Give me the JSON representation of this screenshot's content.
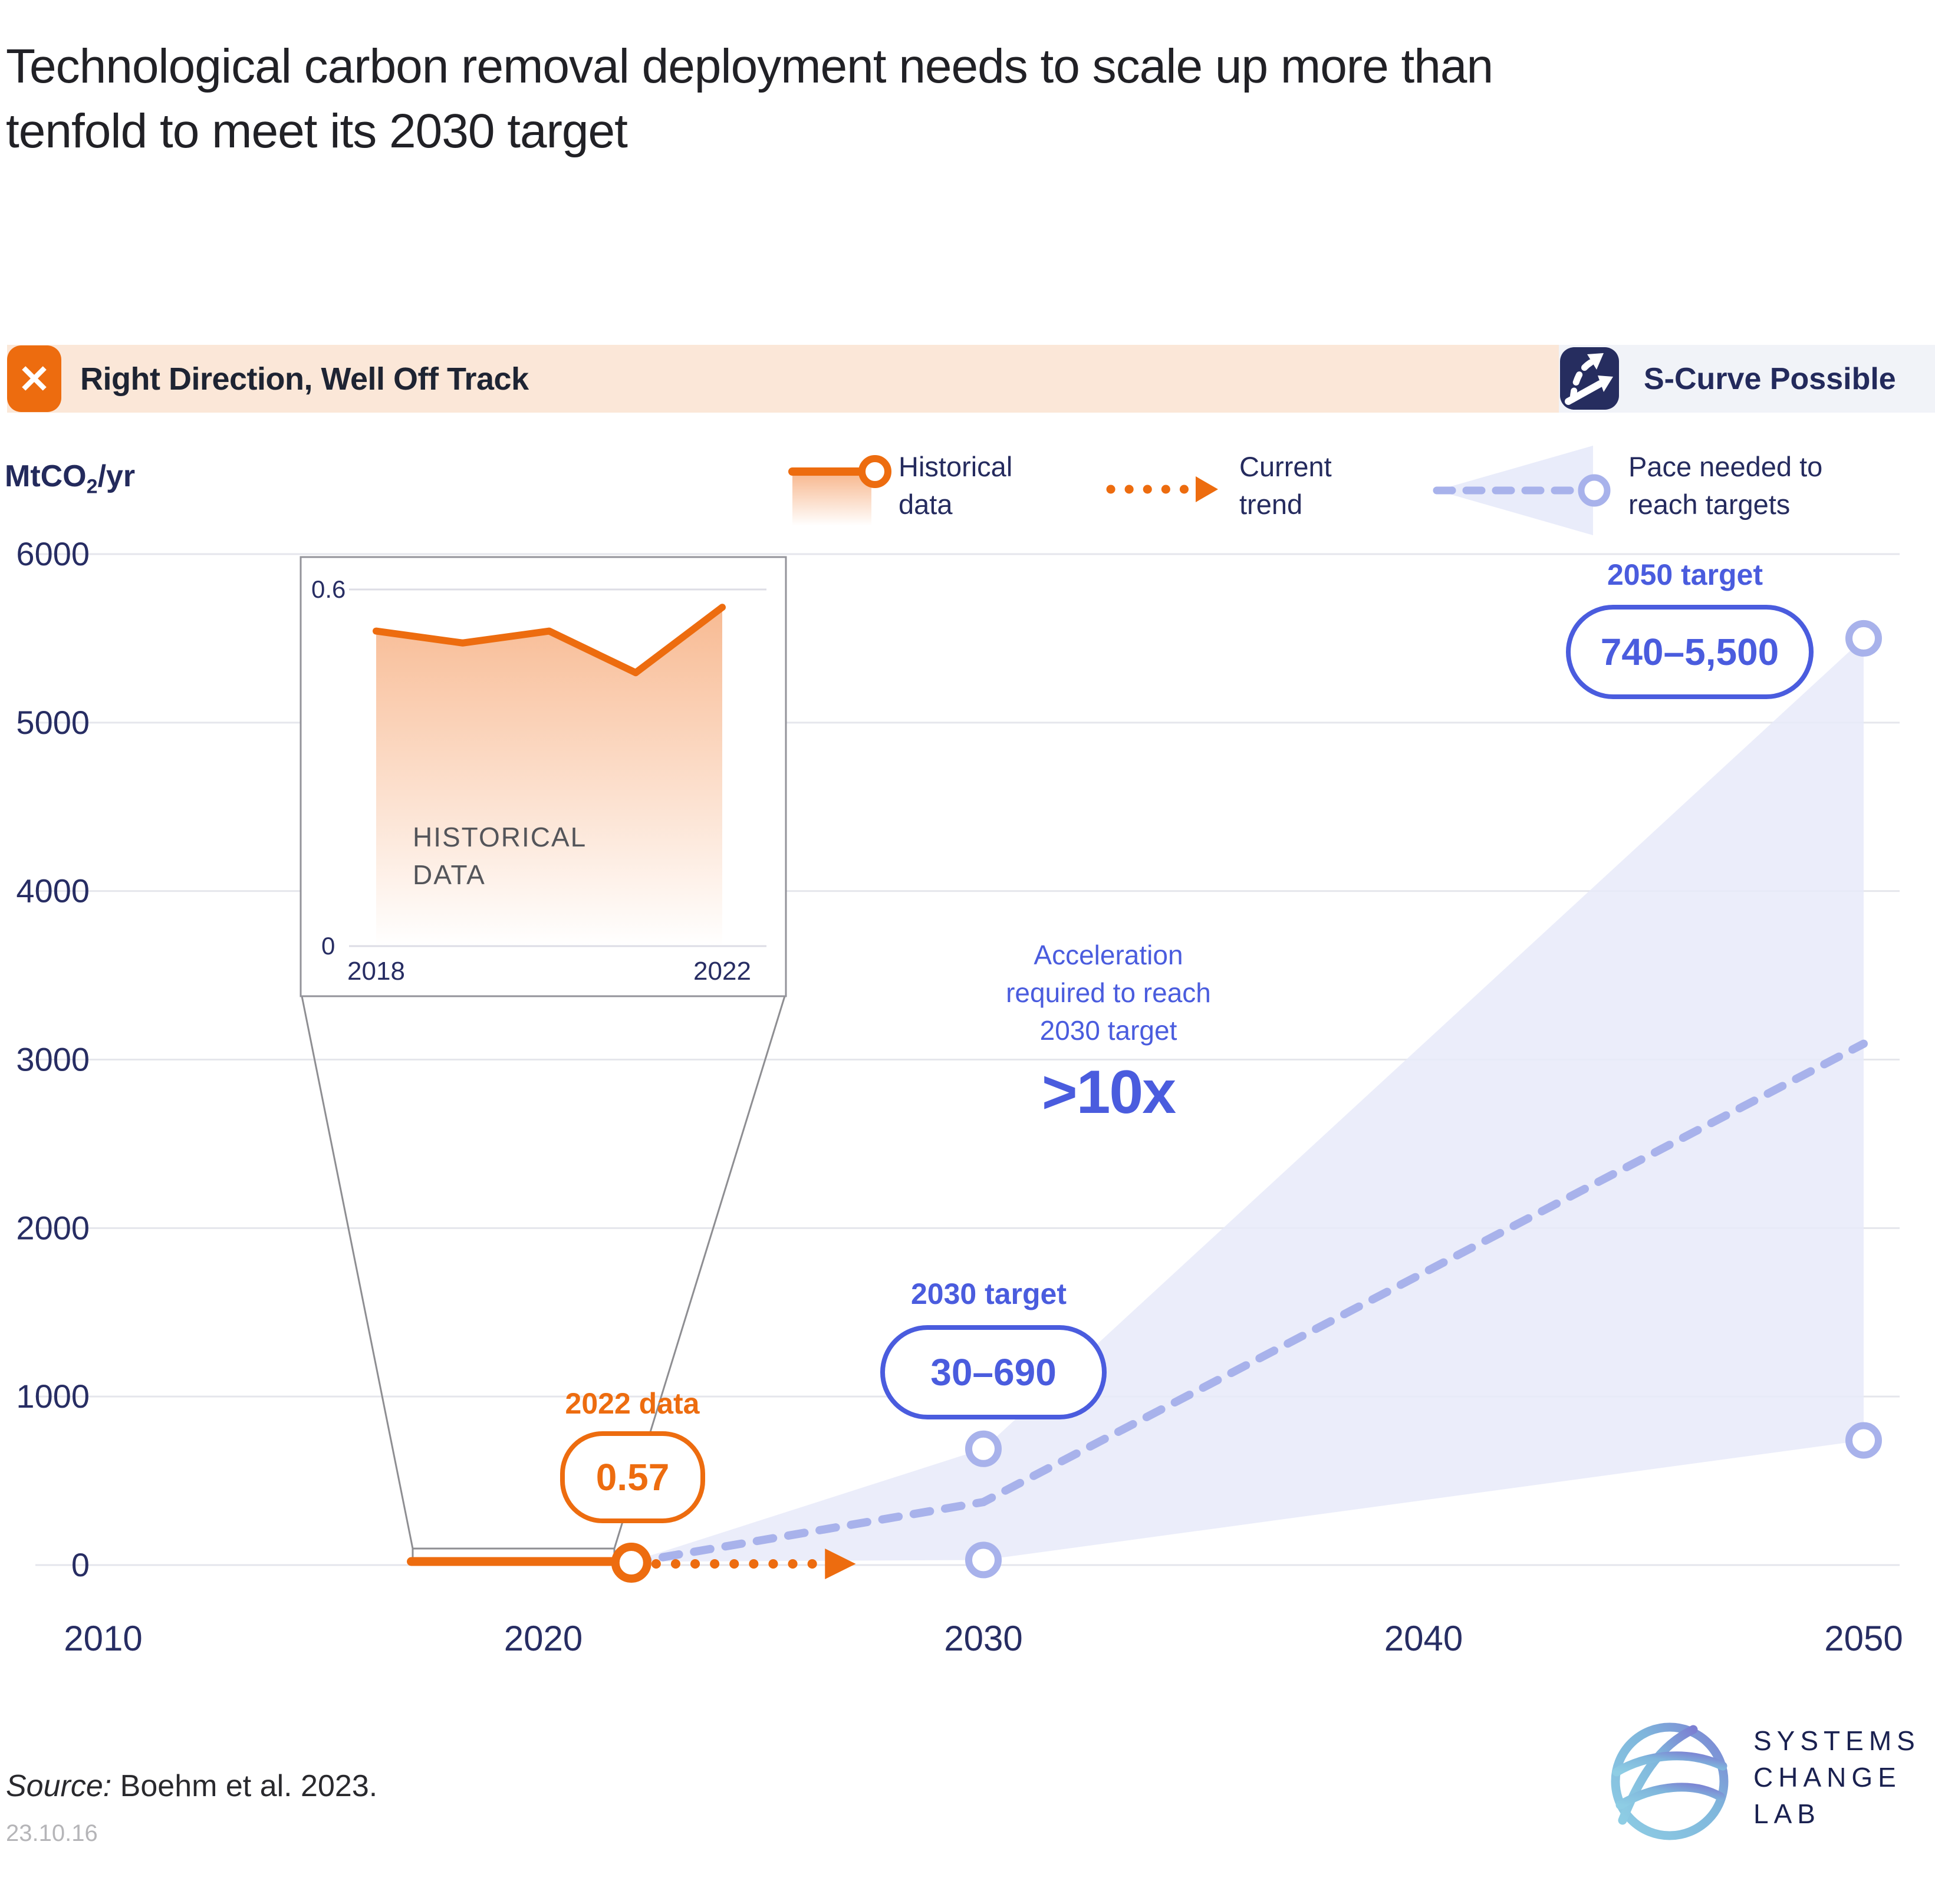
{
  "title": "Technological carbon removal deployment needs to scale up more than tenfold to meet its 2030 target",
  "title_lines": [
    "Technological carbon removal deployment needs to scale up more than",
    "tenfold to meet its 2030 target"
  ],
  "banner": {
    "status_label": "Right Direction, Well Off Track",
    "status_icon": "x-icon",
    "status_glyph": "✕",
    "scurve_label": "S-Curve Possible",
    "scurve_icon": "s-curve-road-icon"
  },
  "legend": [
    {
      "label": "Historical data",
      "swatch": "orange-line-circle-gradient"
    },
    {
      "label": "Current trend",
      "swatch": "orange-dotted-arrow"
    },
    {
      "label": "Pace needed to reach targets",
      "swatch": "blue-dashed-line-fan-circle"
    }
  ],
  "colors": {
    "orange": "#ED6C0F",
    "blue": "#4A5CDE",
    "periwinkle": "#A8B2EB",
    "fan_fill": "#E7EAF9",
    "navy": "#232A5C",
    "grid": "#E5E6EC",
    "banner_peach": "#FBE7D8",
    "banner_gray": "#F1F3F8",
    "icon_navy": "#262D5F",
    "callout_gray": "#8E8E92",
    "inset_border": "#93939A",
    "inset_text_gray": "#54555A"
  },
  "chart_data": {
    "type": "line",
    "title": "Technological carbon removal deployment, MtCO2/yr",
    "ylabel": "MtCO₂/yr",
    "xlabel": "",
    "ylim": [
      0,
      6000
    ],
    "y_ticks": [
      0,
      1000,
      2000,
      3000,
      4000,
      5000,
      6000
    ],
    "x_ticks": [
      2010,
      2020,
      2030,
      2040,
      2050
    ],
    "grid": "horizontal",
    "legend_position": "top",
    "series": [
      {
        "name": "Historical data",
        "style": "solid-orange",
        "x": [
          2017,
          2022
        ],
        "y": [
          0.5,
          0.57
        ]
      },
      {
        "name": "Current trend",
        "style": "dotted-orange-arrow",
        "x": [
          2022,
          2026.5
        ],
        "y": [
          0.57,
          0.57
        ]
      },
      {
        "name": "Pace needed to reach targets",
        "style": "dashed-periwinkle",
        "x": [
          2022,
          2030,
          2050
        ],
        "y": [
          0.57,
          360,
          3080
        ]
      }
    ],
    "range_fan": {
      "x": [
        2022,
        2030,
        2050
      ],
      "lower": [
        0.57,
        30,
        740
      ],
      "upper": [
        0.57,
        690,
        5500
      ]
    },
    "markers": [
      {
        "x": 2022,
        "y": 0.57,
        "color": "orange"
      },
      {
        "x": 2030,
        "y": 690,
        "color": "periwinkle"
      },
      {
        "x": 2030,
        "y": 30,
        "color": "periwinkle"
      },
      {
        "x": 2050,
        "y": 5500,
        "color": "periwinkle"
      },
      {
        "x": 2050,
        "y": 740,
        "color": "periwinkle"
      }
    ],
    "annotations": {
      "data_2022": {
        "label": "2022 data",
        "value": "0.57"
      },
      "target_2030": {
        "label": "2030 target",
        "value": "30–690"
      },
      "target_2050": {
        "label": "2050 target",
        "value": "740–5,500"
      },
      "acceleration": {
        "text": "Acceleration required to reach 2030 target",
        "multiplier": ">10x"
      }
    },
    "inset": {
      "name": "HISTORICAL DATA",
      "note_lines": [
        "HISTORICAL",
        "DATA"
      ],
      "x": [
        2018,
        2019,
        2020,
        2021,
        2022
      ],
      "y": [
        0.53,
        0.51,
        0.53,
        0.46,
        0.57
      ],
      "ylim": [
        0,
        0.6
      ],
      "y_tick_labels": [
        "0",
        "0.6"
      ],
      "x_tick_labels": [
        "2018",
        "2022"
      ]
    }
  },
  "source": {
    "prefix": "Source:",
    "text": "Boehm et al. 2023.",
    "date_code": "23.10.16"
  },
  "logo": {
    "lines": [
      "SYSTEMS",
      "CHANGE",
      "LAB"
    ],
    "mark": "globe-waves-icon"
  }
}
